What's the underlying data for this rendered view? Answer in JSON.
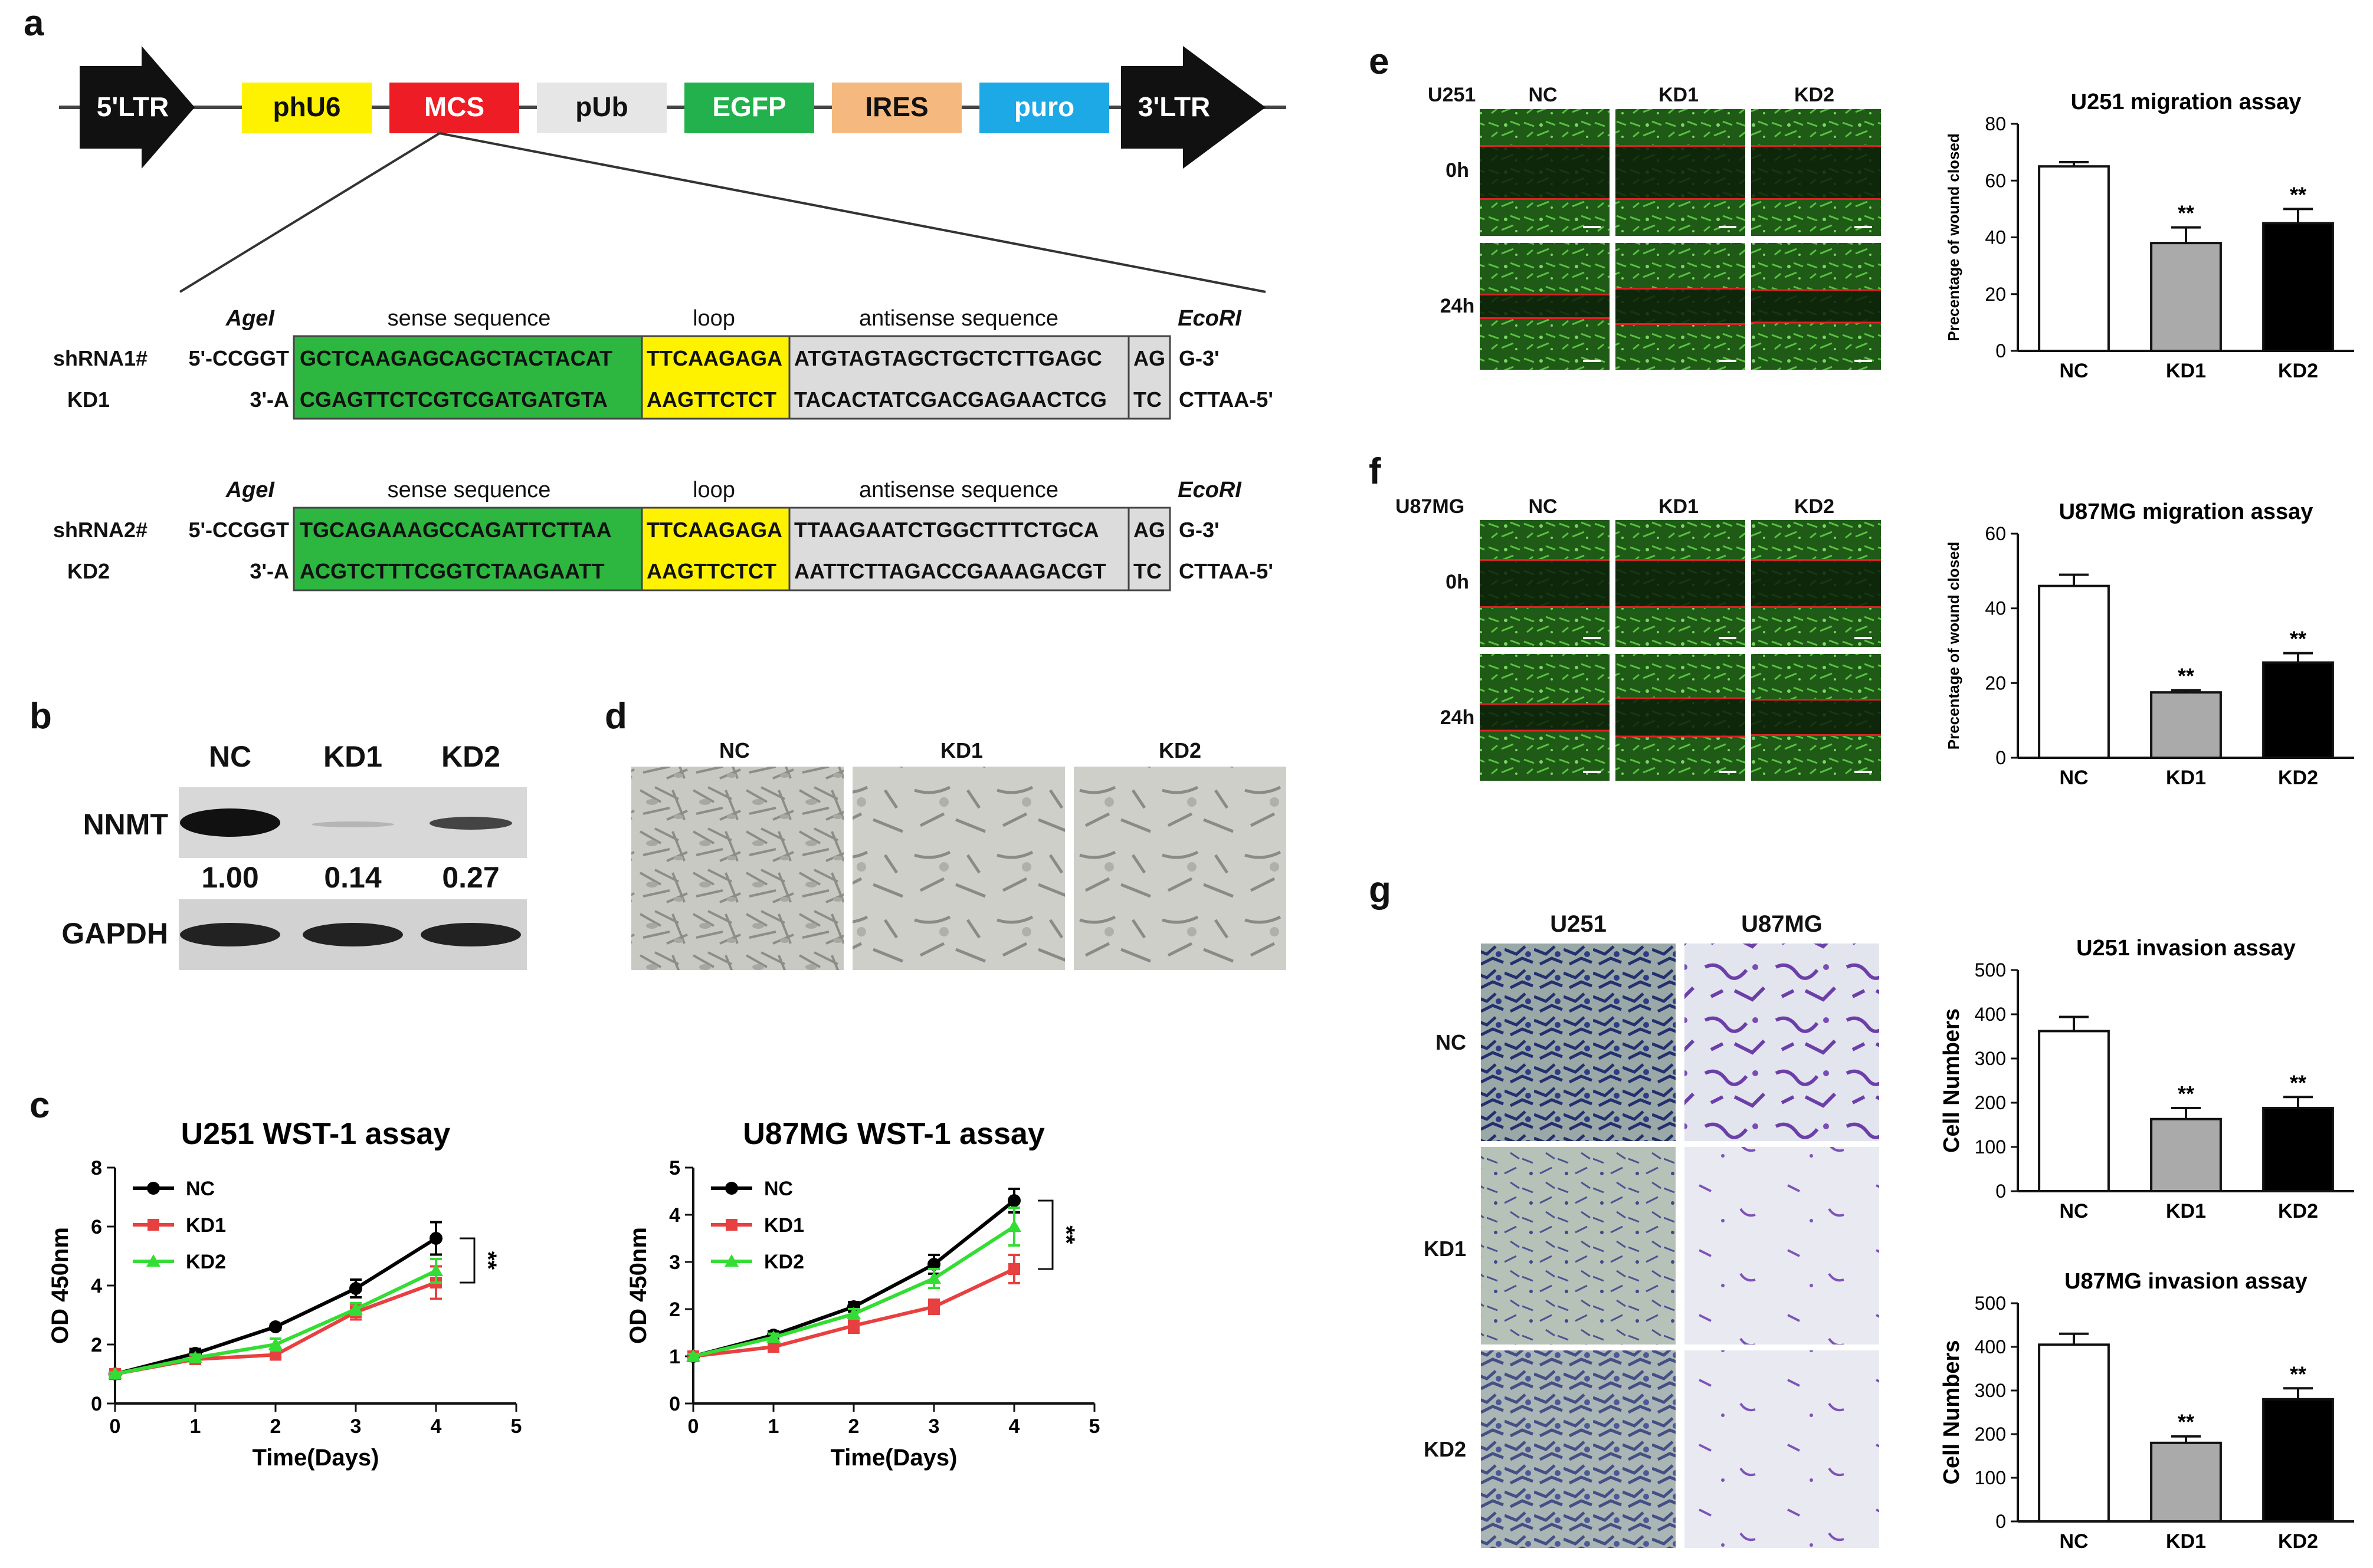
{
  "panel_letters": {
    "a": "a",
    "b": "b",
    "c": "c",
    "d": "d",
    "e": "e",
    "f": "f",
    "g": "g"
  },
  "vector": {
    "elements": [
      {
        "label": "5'LTR",
        "color": "#111111",
        "text_color": "#ffffff",
        "shape": "arrow"
      },
      {
        "label": "phU6",
        "color": "#fff200",
        "text_color": "#111111",
        "shape": "box"
      },
      {
        "label": "MCS",
        "color": "#ee1c25",
        "text_color": "#ffffff",
        "shape": "box"
      },
      {
        "label": "pUb",
        "color": "#e6e6e6",
        "text_color": "#111111",
        "shape": "box"
      },
      {
        "label": "EGFP",
        "color": "#22b14c",
        "text_color": "#ffffff",
        "shape": "box"
      },
      {
        "label": "IRES",
        "color": "#f5b97f",
        "text_color": "#111111",
        "shape": "box"
      },
      {
        "label": "puro",
        "color": "#1ca9e6",
        "text_color": "#ffffff",
        "shape": "box"
      },
      {
        "label": "3'LTR",
        "color": "#111111",
        "text_color": "#ffffff",
        "shape": "arrow"
      }
    ]
  },
  "shrna": [
    {
      "header": {
        "agel": "AgeI",
        "sense": "sense sequence",
        "loop": "loop",
        "antisense": "antisense sequence",
        "ecori": "EcoRI"
      },
      "name": "shRNA1#",
      "kd": "KD1",
      "top_prefix": "5'-CCGGT",
      "bottom_prefix": "3'-A",
      "sense_top": "GCTCAAGAGCAGCTACTACAT",
      "loop_top": "TTCAAGAGA",
      "anti_top": "ATGTAGTAGCTGCTCTTGAGC",
      "end_top": "AG",
      "suffix_top": "G-3'",
      "sense_bottom": "CGAGTTCTCGTCGATGATGTA",
      "loop_bottom": "AAGTTCTCT",
      "anti_bottom": "TACACTATCGACGAGAACTCG",
      "end_bottom": "TC",
      "suffix_bottom": "CTTAA-5'"
    },
    {
      "header": {
        "agel": "AgeI",
        "sense": "sense sequence",
        "loop": "loop",
        "antisense": "antisense sequence",
        "ecori": "EcoRI"
      },
      "name": "shRNA2#",
      "kd": "KD2",
      "top_prefix": "5'-CCGGT",
      "bottom_prefix": "3'-A",
      "sense_top": "TGCAGAAAGCCAGATTCTTAA",
      "loop_top": "TTCAAGAGA",
      "anti_top": "TTAAGAATCTGGCTTTCTGCA",
      "end_top": "AG",
      "suffix_top": "G-3'",
      "sense_bottom": "ACGTCTTTCGGTCTAAGAATT",
      "loop_bottom": "AAGTTCTCT",
      "anti_bottom": "AATTCTTAGACCGAAAGACGT",
      "end_bottom": "TC",
      "suffix_bottom": "CTTAA-5'"
    }
  ],
  "western": {
    "lanes": [
      "NC",
      "KD1",
      "KD2"
    ],
    "nnmt_label": "NNMT",
    "gapdh_label": "GAPDH",
    "ratios": [
      "1.00",
      "0.14",
      "0.27"
    ]
  },
  "morphology": {
    "labels": [
      "NC",
      "KD1",
      "KD2"
    ]
  },
  "migration_images": {
    "u251": {
      "cell": "U251",
      "cols": [
        "NC",
        "KD1",
        "KD2"
      ],
      "rows": [
        "0h",
        "24h"
      ]
    },
    "u87": {
      "cell": "U87MG",
      "cols": [
        "NC",
        "KD1",
        "KD2"
      ],
      "rows": [
        "0h",
        "24h"
      ]
    }
  },
  "invasion_images": {
    "cols": [
      "U251",
      "U87MG"
    ],
    "rows": [
      "NC",
      "KD1",
      "KD2"
    ]
  },
  "chart_data": [
    {
      "type": "line",
      "title": "U251 WST-1 assay",
      "xlabel": "Time(Days)",
      "ylabel": "OD 450nm",
      "xlim": [
        0,
        5
      ],
      "ylim": [
        0,
        8
      ],
      "xticks": [
        0,
        1,
        2,
        3,
        4,
        5
      ],
      "yticks": [
        0,
        2,
        4,
        6,
        8
      ],
      "x": [
        0,
        1,
        2,
        3,
        4
      ],
      "series": [
        {
          "name": "NC",
          "color": "#000000",
          "values": [
            1.0,
            1.7,
            2.6,
            3.9,
            5.6
          ],
          "errors": [
            0.05,
            0.15,
            0.1,
            0.3,
            0.55
          ]
        },
        {
          "name": "KD1",
          "color": "#e84040",
          "values": [
            1.0,
            1.5,
            1.65,
            3.1,
            4.1
          ],
          "errors": [
            0.05,
            0.1,
            0.15,
            0.25,
            0.55
          ]
        },
        {
          "name": "KD2",
          "color": "#33dd33",
          "values": [
            1.0,
            1.55,
            2.0,
            3.2,
            4.5
          ],
          "errors": [
            0.05,
            0.1,
            0.2,
            0.2,
            0.4
          ]
        }
      ],
      "legend_position": "top-left",
      "significance": "**"
    },
    {
      "type": "line",
      "title": "U87MG WST-1 assay",
      "xlabel": "Time(Days)",
      "ylabel": "OD 450nm",
      "xlim": [
        0,
        5
      ],
      "ylim": [
        0,
        5
      ],
      "xticks": [
        0,
        1,
        2,
        3,
        4,
        5
      ],
      "yticks": [
        0,
        1,
        2,
        3,
        4,
        5
      ],
      "x": [
        0,
        1,
        2,
        3,
        4
      ],
      "series": [
        {
          "name": "NC",
          "color": "#000000",
          "values": [
            1.0,
            1.45,
            2.05,
            2.95,
            4.3
          ],
          "errors": [
            0.05,
            0.08,
            0.1,
            0.2,
            0.25
          ]
        },
        {
          "name": "KD1",
          "color": "#e84040",
          "values": [
            1.0,
            1.2,
            1.65,
            2.05,
            2.85
          ],
          "errors": [
            0.05,
            0.08,
            0.15,
            0.15,
            0.3
          ]
        },
        {
          "name": "KD2",
          "color": "#33dd33",
          "values": [
            1.0,
            1.4,
            1.9,
            2.65,
            3.75
          ],
          "errors": [
            0.05,
            0.08,
            0.1,
            0.2,
            0.4
          ]
        }
      ],
      "legend_position": "top-left",
      "significance": "**"
    },
    {
      "type": "bar",
      "title": "U251 migration assay",
      "ylabel": "Precentage of wound closed",
      "categories": [
        "NC",
        "KD1",
        "KD2"
      ],
      "values": [
        65,
        38,
        45
      ],
      "errors": [
        1.5,
        5.5,
        5
      ],
      "ylim": [
        0,
        80
      ],
      "yticks": [
        0,
        20,
        40,
        60,
        80
      ],
      "bar_colors": [
        "#ffffff",
        "#aaaaaa",
        "#000000"
      ],
      "annotations": [
        "",
        "**",
        "**"
      ]
    },
    {
      "type": "bar",
      "title": "U87MG migration assay",
      "ylabel": "Precentage of wound closed",
      "categories": [
        "NC",
        "KD1",
        "KD2"
      ],
      "values": [
        46,
        17.5,
        25.5
      ],
      "errors": [
        3,
        0.6,
        2.5
      ],
      "ylim": [
        0,
        60
      ],
      "yticks": [
        0,
        20,
        40,
        60
      ],
      "bar_colors": [
        "#ffffff",
        "#aaaaaa",
        "#000000"
      ],
      "annotations": [
        "",
        "**",
        "**"
      ]
    },
    {
      "type": "bar",
      "title": "U251 invasion assay",
      "ylabel": "Cell Numbers",
      "categories": [
        "NC",
        "KD1",
        "KD2"
      ],
      "values": [
        362,
        163,
        188
      ],
      "errors": [
        32,
        25,
        25
      ],
      "ylim": [
        0,
        500
      ],
      "yticks": [
        0,
        100,
        200,
        300,
        400,
        500
      ],
      "bar_colors": [
        "#ffffff",
        "#aaaaaa",
        "#000000"
      ],
      "annotations": [
        "",
        "**",
        "**"
      ]
    },
    {
      "type": "bar",
      "title": "U87MG invasion assay",
      "ylabel": "Cell Numbers",
      "categories": [
        "NC",
        "KD1",
        "KD2"
      ],
      "values": [
        405,
        180,
        280
      ],
      "errors": [
        25,
        15,
        25
      ],
      "ylim": [
        0,
        500
      ],
      "yticks": [
        0,
        100,
        200,
        300,
        400,
        500
      ],
      "bar_colors": [
        "#ffffff",
        "#aaaaaa",
        "#000000"
      ],
      "annotations": [
        "",
        "**",
        "**"
      ]
    }
  ]
}
